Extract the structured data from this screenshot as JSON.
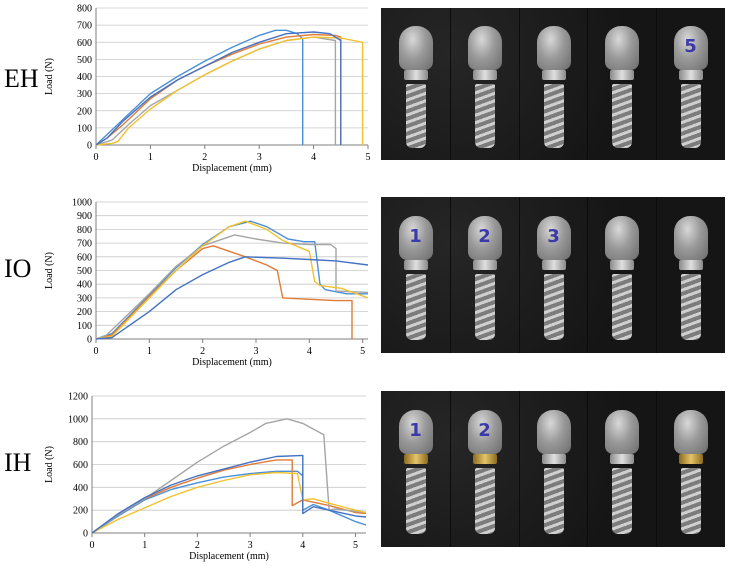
{
  "rows": [
    {
      "label": "EH",
      "photo_numbers": [
        "",
        "",
        "",
        "",
        "5"
      ],
      "gold_collar": [
        false,
        false,
        false,
        false,
        false
      ]
    },
    {
      "label": "IO",
      "photo_numbers": [
        "1",
        "2",
        "3",
        "",
        ""
      ],
      "gold_collar": [
        false,
        false,
        false,
        false,
        false
      ]
    },
    {
      "label": "IH",
      "photo_numbers": [
        "1",
        "2",
        "",
        "",
        ""
      ],
      "gold_collar": [
        true,
        true,
        false,
        false,
        true
      ]
    }
  ],
  "chart_data": [
    {
      "type": "line",
      "title": "",
      "xlabel": "Displacement (mm)",
      "ylabel": "Load (N)",
      "xlim": [
        0,
        5
      ],
      "ylim": [
        0,
        800
      ],
      "xticks": [
        0,
        1,
        2,
        3,
        4,
        5
      ],
      "yticks": [
        0,
        100,
        200,
        300,
        400,
        500,
        600,
        700,
        800
      ],
      "grid": "horizontal",
      "series": [
        {
          "color": "#4a90d9",
          "x": [
            0,
            0.1,
            0.5,
            1.0,
            1.5,
            2.0,
            2.5,
            3.0,
            3.3,
            3.5,
            3.7,
            3.8,
            3.8
          ],
          "y": [
            0,
            30,
            150,
            300,
            400,
            490,
            570,
            640,
            670,
            670,
            650,
            620,
            0
          ]
        },
        {
          "color": "#e07b39",
          "x": [
            0,
            0.2,
            0.5,
            1.0,
            1.5,
            2.0,
            2.5,
            3.0,
            3.5,
            4.0,
            4.4,
            4.5,
            4.5
          ],
          "y": [
            0,
            40,
            120,
            270,
            380,
            460,
            530,
            590,
            630,
            645,
            640,
            630,
            0
          ]
        },
        {
          "color": "#a5a5a5",
          "x": [
            0,
            0.3,
            0.6,
            1.0,
            1.5,
            2.0,
            2.5,
            3.0,
            3.5,
            4.0,
            4.4,
            4.4
          ],
          "y": [
            0,
            30,
            120,
            230,
            320,
            410,
            490,
            560,
            610,
            630,
            610,
            0
          ]
        },
        {
          "color": "#f2c12e",
          "x": [
            0,
            0.3,
            0.4,
            0.6,
            1.0,
            1.5,
            2.0,
            2.5,
            3.0,
            3.5,
            4.0,
            4.5,
            4.9,
            4.9
          ],
          "y": [
            0,
            10,
            20,
            100,
            210,
            320,
            410,
            490,
            560,
            610,
            630,
            625,
            600,
            0
          ]
        },
        {
          "color": "#4472c4",
          "x": [
            0,
            0.2,
            0.5,
            1.0,
            1.5,
            2.0,
            2.5,
            3.0,
            3.5,
            4.0,
            4.3,
            4.5,
            4.5
          ],
          "y": [
            0,
            40,
            140,
            280,
            380,
            460,
            540,
            600,
            650,
            660,
            650,
            610,
            0
          ]
        }
      ]
    },
    {
      "type": "line",
      "title": "",
      "xlabel": "Displacement (mm)",
      "ylabel": "Load (N)",
      "xlim": [
        0,
        5.1
      ],
      "ylim": [
        0,
        1000
      ],
      "xticks": [
        0,
        1,
        2,
        3,
        4,
        5
      ],
      "yticks": [
        0,
        100,
        200,
        300,
        400,
        500,
        600,
        700,
        800,
        900,
        1000
      ],
      "grid": "horizontal",
      "series": [
        {
          "color": "#4a90d9",
          "x": [
            0,
            0.3,
            1.0,
            1.5,
            2.0,
            2.5,
            2.9,
            3.2,
            3.6,
            3.9,
            4.1,
            4.2,
            4.3,
            4.7,
            5.1
          ],
          "y": [
            0,
            40,
            320,
            520,
            690,
            820,
            860,
            820,
            730,
            710,
            710,
            400,
            360,
            330,
            330
          ]
        },
        {
          "color": "#e07b39",
          "x": [
            0,
            0.3,
            1.0,
            1.5,
            2.0,
            2.2,
            2.5,
            2.8,
            3.2,
            3.4,
            3.5,
            4.0,
            4.5,
            4.8,
            4.8
          ],
          "y": [
            0,
            30,
            310,
            500,
            660,
            680,
            640,
            600,
            540,
            500,
            300,
            290,
            280,
            280,
            0
          ]
        },
        {
          "color": "#a5a5a5",
          "x": [
            0,
            0.2,
            1.0,
            1.5,
            2.0,
            2.6,
            3.0,
            3.5,
            4.0,
            4.4,
            4.5,
            4.5,
            5.1
          ],
          "y": [
            0,
            30,
            330,
            530,
            680,
            760,
            730,
            700,
            690,
            690,
            660,
            350,
            340
          ]
        },
        {
          "color": "#f2c12e",
          "x": [
            0,
            0.3,
            1.0,
            1.5,
            2.0,
            2.5,
            2.8,
            3.2,
            3.5,
            4.0,
            4.1,
            4.2,
            4.6,
            5.1
          ],
          "y": [
            0,
            20,
            300,
            500,
            680,
            820,
            860,
            800,
            720,
            640,
            420,
            390,
            370,
            300
          ]
        },
        {
          "color": "#4472c4",
          "x": [
            0,
            0.3,
            1.0,
            1.5,
            2.0,
            2.5,
            2.8,
            3.5,
            4.0,
            4.5,
            5.1
          ],
          "y": [
            0,
            10,
            200,
            360,
            470,
            560,
            600,
            590,
            580,
            570,
            540
          ]
        }
      ]
    },
    {
      "type": "line",
      "title": "",
      "xlabel": "Displacement (mm)",
      "ylabel": "Load (N)",
      "xlim": [
        0,
        5.2
      ],
      "ylim": [
        0,
        1200
      ],
      "xticks": [
        0,
        1,
        2,
        3,
        4,
        5
      ],
      "yticks": [
        0,
        200,
        400,
        600,
        800,
        1000,
        1200
      ],
      "grid": "horizontal",
      "series": [
        {
          "color": "#4a90d9",
          "x": [
            0,
            0.5,
            1.0,
            1.5,
            2.0,
            2.5,
            3.0,
            3.5,
            3.9,
            4.0,
            4.0,
            4.2,
            4.5,
            5.0,
            5.2
          ],
          "y": [
            0,
            150,
            290,
            380,
            440,
            490,
            520,
            540,
            540,
            500,
            200,
            250,
            200,
            100,
            70
          ]
        },
        {
          "color": "#e07b39",
          "x": [
            0,
            0.5,
            1.0,
            1.5,
            2.0,
            2.5,
            3.0,
            3.5,
            3.8,
            3.8,
            4.0,
            4.5,
            5.0,
            5.2
          ],
          "y": [
            0,
            160,
            300,
            400,
            480,
            550,
            600,
            640,
            640,
            240,
            290,
            240,
            180,
            170
          ]
        },
        {
          "color": "#a5a5a5",
          "x": [
            0,
            0.5,
            1.0,
            1.5,
            2.0,
            2.5,
            3.0,
            3.3,
            3.7,
            4.0,
            4.4,
            4.5,
            4.6,
            5.0,
            5.2
          ],
          "y": [
            0,
            160,
            300,
            460,
            620,
            760,
            880,
            960,
            1000,
            960,
            860,
            200,
            210,
            190,
            180
          ]
        },
        {
          "color": "#f2c12e",
          "x": [
            0,
            0.5,
            1.0,
            1.5,
            2.0,
            2.5,
            3.0,
            3.5,
            3.9,
            4.0,
            4.2,
            4.5,
            5.0,
            5.2
          ],
          "y": [
            0,
            120,
            220,
            320,
            400,
            460,
            510,
            530,
            520,
            290,
            300,
            260,
            200,
            180
          ]
        },
        {
          "color": "#4472c4",
          "x": [
            0,
            0.5,
            1.0,
            1.5,
            2.0,
            2.5,
            3.0,
            3.5,
            4.0,
            4.0,
            4.2,
            4.5,
            5.0,
            5.2
          ],
          "y": [
            0,
            170,
            310,
            420,
            500,
            560,
            620,
            670,
            680,
            170,
            230,
            200,
            150,
            140
          ]
        }
      ]
    }
  ]
}
